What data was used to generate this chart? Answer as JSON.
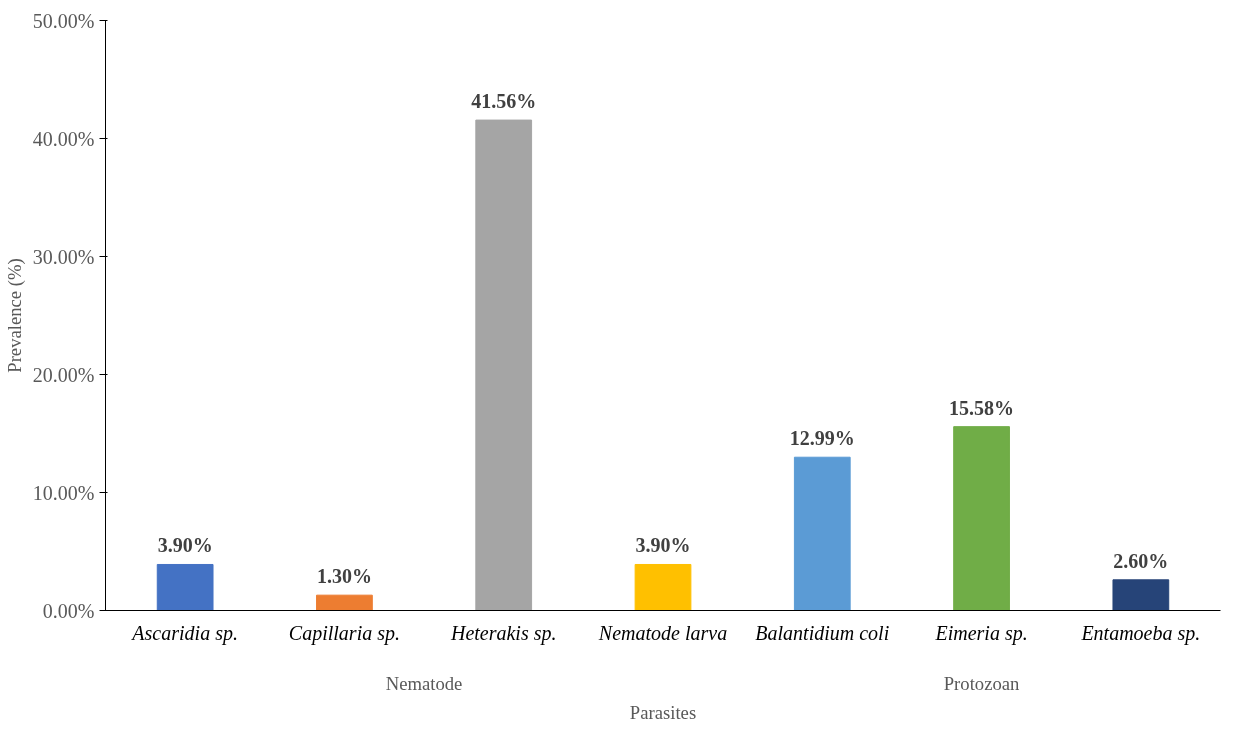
{
  "chart_data": {
    "type": "bar",
    "ylabel": "Prevalence (%)",
    "xlabel": "Parasites",
    "categories": [
      "Ascaridia sp.",
      "Capillaria sp.",
      "Heterakis sp.",
      "Nematode larva",
      "Balantidium coli",
      "Eimeria sp.",
      "Entamoeba sp."
    ],
    "values": [
      3.9,
      1.3,
      41.56,
      3.9,
      12.99,
      15.58,
      2.6
    ],
    "colors": [
      "#4472c4",
      "#ed7d31",
      "#a5a5a5",
      "#ffc000",
      "#5b9bd5",
      "#70ad47",
      "#264478"
    ],
    "value_labels": [
      "3.90%",
      "1.30%",
      "41.56%",
      "3.90%",
      "12.99%",
      "15.58%",
      "2.60%"
    ],
    "ylim": [
      0,
      50
    ],
    "yticks": [
      {
        "value": 0,
        "label": "0.00%"
      },
      {
        "value": 10,
        "label": "10.00%"
      },
      {
        "value": 20,
        "label": "20.00%"
      },
      {
        "value": 30,
        "label": "30.00%"
      },
      {
        "value": 40,
        "label": "40.00%"
      },
      {
        "value": 50,
        "label": "50.00%"
      }
    ],
    "annotations": [
      "Nematode",
      "Protozoan"
    ],
    "grid": false
  }
}
